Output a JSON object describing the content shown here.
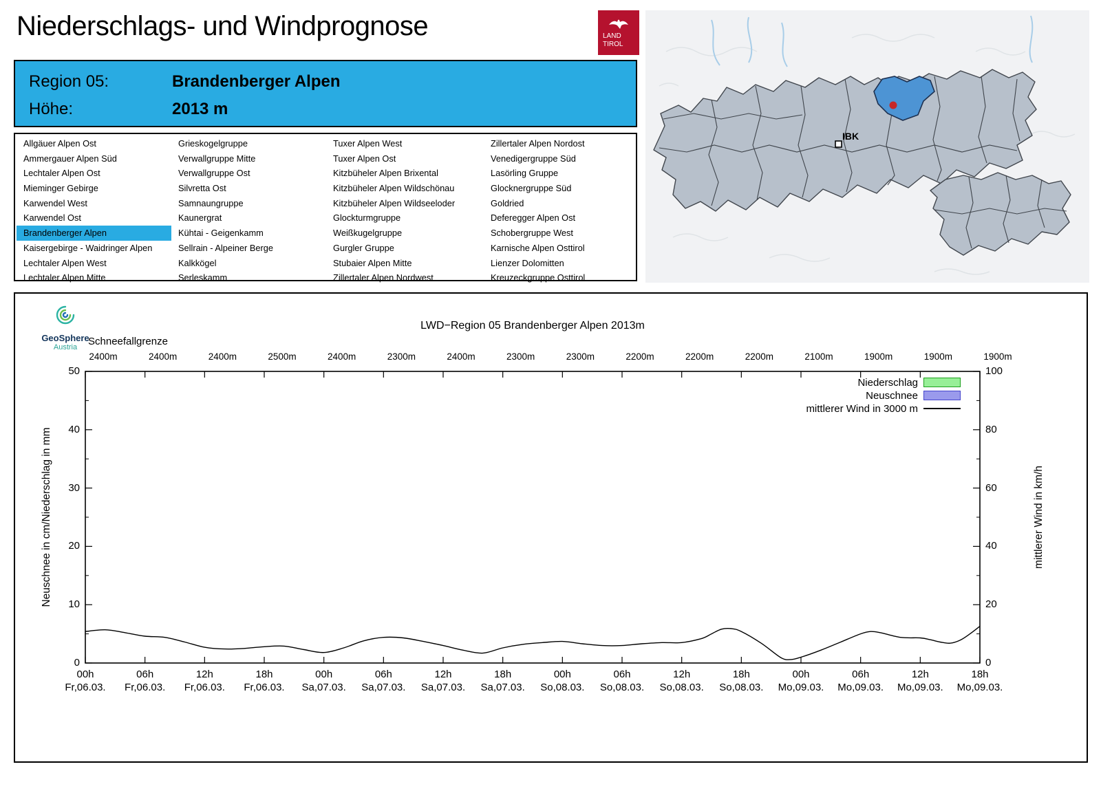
{
  "page": {
    "title": "Niederschlags- und Windprognose"
  },
  "logo_land_tirol": {
    "line1": "LAND",
    "line2": "TIROL",
    "bg_color": "#b5122e"
  },
  "region_header": {
    "region_label": "Region 05:",
    "region_value": "Brandenberger Alpen",
    "height_label": "Höhe:",
    "height_value": "2013 m",
    "bg_color": "#29abe2"
  },
  "region_list": {
    "selected": "Brandenberger Alpen",
    "highlight_color": "#29abe2",
    "columns": [
      [
        "Allgäuer Alpen Ost",
        "Ammergauer Alpen Süd",
        "Lechtaler Alpen Ost",
        "Mieminger Gebirge",
        "Karwendel West",
        "Karwendel Ost",
        "Brandenberger Alpen",
        "Kaisergebirge - Waidringer Alpen",
        "Lechtaler Alpen West",
        "Lechtaler Alpen Mitte"
      ],
      [
        "Grieskogelgruppe",
        "Verwallgruppe Mitte",
        "Verwallgruppe Ost",
        "Silvretta Ost",
        "Samnaungruppe",
        "Kaunergrat",
        "Kühtai - Geigenkamm",
        "Sellrain - Alpeiner Berge",
        "Kalkkögel",
        "Serleskamm"
      ],
      [
        "Tuxer Alpen West",
        "Tuxer Alpen Ost",
        "Kitzbüheler Alpen Brixental",
        "Kitzbüheler Alpen Wildschönau",
        "Kitzbüheler Alpen Wildseeloder",
        "Glockturmgruppe",
        "Weißkugelgruppe",
        "Gurgler Gruppe",
        "Stubaier Alpen Mitte",
        "Zillertaler Alpen Nordwest"
      ],
      [
        "Zillertaler Alpen Nordost",
        "Venedigergruppe Süd",
        "Lasörling Gruppe",
        "Glocknergruppe Süd",
        "Goldried",
        "Deferegger Alpen Ost",
        "Schobergruppe West",
        "Karnische Alpen Osttirol",
        "Lienzer Dolomitten",
        "Kreuzeckgruppe Osttirol"
      ]
    ]
  },
  "map": {
    "city_label": "IBK",
    "selected_region": "Brandenberger Alpen",
    "selected_fill": "#4d94d4",
    "marker_color": "#c62828"
  },
  "provider": {
    "name": "GeoSphere",
    "sub": "Austria"
  },
  "chart_data": {
    "type": "line",
    "title": "LWD−Region 05 Brandenberger Alpen 2013m",
    "snowline": {
      "label": "Schneefallgrenze",
      "values": [
        "2400m",
        "2400m",
        "2400m",
        "2500m",
        "2400m",
        "2300m",
        "2400m",
        "2300m",
        "2300m",
        "2200m",
        "2200m",
        "2200m",
        "2100m",
        "1900m",
        "1900m",
        "1900m"
      ]
    },
    "axes": {
      "left": {
        "label": "Neuschnee in cm/Niederschlag in mm",
        "lim": [
          0,
          50
        ],
        "ticks": [
          0,
          10,
          20,
          30,
          40,
          50
        ]
      },
      "right": {
        "label": "mittlerer Wind in km/h",
        "lim": [
          0,
          100
        ],
        "ticks": [
          0,
          20,
          40,
          60,
          80,
          100
        ]
      },
      "x": {
        "range_hours": [
          0,
          90
        ],
        "tick_step_hours": 6,
        "tick_labels": [
          {
            "hour": "00h",
            "date": "Fr,06.03."
          },
          {
            "hour": "06h",
            "date": "Fr,06.03."
          },
          {
            "hour": "12h",
            "date": "Fr,06.03."
          },
          {
            "hour": "18h",
            "date": "Fr,06.03."
          },
          {
            "hour": "00h",
            "date": "Sa,07.03."
          },
          {
            "hour": "06h",
            "date": "Sa,07.03."
          },
          {
            "hour": "12h",
            "date": "Sa,07.03."
          },
          {
            "hour": "18h",
            "date": "Sa,07.03."
          },
          {
            "hour": "00h",
            "date": "So,08.03."
          },
          {
            "hour": "06h",
            "date": "So,08.03."
          },
          {
            "hour": "12h",
            "date": "So,08.03."
          },
          {
            "hour": "18h",
            "date": "So,08.03."
          },
          {
            "hour": "00h",
            "date": "Mo,09.03."
          },
          {
            "hour": "06h",
            "date": "Mo,09.03."
          },
          {
            "hour": "12h",
            "date": "Mo,09.03."
          },
          {
            "hour": "18h",
            "date": "Mo,09.03."
          }
        ]
      }
    },
    "legend": [
      {
        "label": "Niederschlag",
        "swatch": "box",
        "fill": "#97ef97",
        "border": "#1ca01c"
      },
      {
        "label": "Neuschnee",
        "swatch": "box",
        "fill": "#9a9aec",
        "border": "#4444cc"
      },
      {
        "label": "mittlerer Wind in 3000 m",
        "swatch": "line",
        "color": "#000000"
      }
    ],
    "grid": false,
    "series": [
      {
        "name": "Niederschlag",
        "type": "bars",
        "axis": "left",
        "values": []
      },
      {
        "name": "Neuschnee",
        "type": "bars",
        "axis": "left",
        "values": []
      },
      {
        "name": "mittlerer Wind in 3000 m",
        "type": "line",
        "axis": "right",
        "x_hours": [
          0,
          2,
          4,
          6,
          8,
          10,
          12,
          14,
          16,
          18,
          20,
          22,
          24,
          26,
          28,
          30,
          32,
          34,
          36,
          38,
          40,
          42,
          44,
          46,
          48,
          50,
          52,
          54,
          56,
          58,
          60,
          62,
          63,
          64,
          65,
          66,
          68,
          70,
          71,
          72,
          74,
          76,
          78,
          79,
          80,
          82,
          84,
          85,
          86,
          87,
          88,
          89,
          90
        ],
        "values_kmh": [
          10.8,
          11.4,
          10.4,
          9.2,
          8.8,
          7.2,
          5.4,
          4.8,
          5.0,
          5.6,
          5.8,
          4.6,
          3.6,
          5.2,
          7.6,
          8.8,
          8.6,
          7.4,
          6.0,
          4.4,
          3.4,
          5.2,
          6.4,
          7.0,
          7.4,
          6.6,
          6.0,
          6.0,
          6.6,
          7.0,
          7.0,
          8.4,
          10.0,
          11.6,
          11.8,
          10.8,
          6.8,
          1.8,
          1.2,
          2.0,
          4.4,
          7.2,
          10.0,
          10.8,
          10.4,
          8.8,
          8.6,
          8.0,
          7.2,
          6.8,
          7.8,
          10.0,
          12.6
        ]
      }
    ]
  }
}
